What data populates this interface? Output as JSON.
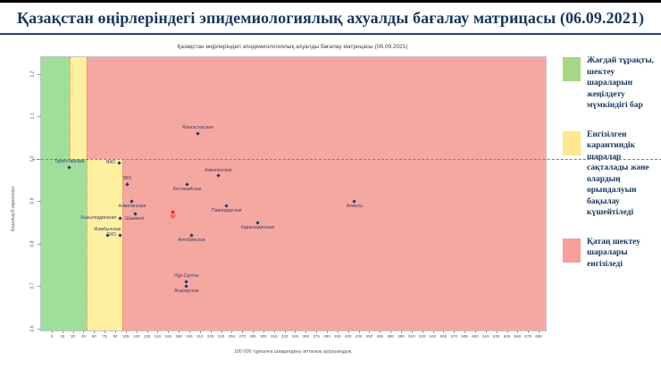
{
  "page": {
    "title": "Қазақстан өңірлеріндегі эпидемиологиялық ахуалды бағалау матрицасы  (06.09.2021)"
  },
  "legend": {
    "items": [
      {
        "color": "#a6d785",
        "label": "Жағдай тұрақты, шектеу шараларын жеңілдету мүмкіндігі бар"
      },
      {
        "color": "#ffe88e",
        "label": "Енгізілген карантиндік шаралар сақталады және олардың орындалуын бақылау күшейтіледі"
      },
      {
        "color": "#f79f98",
        "label": "Қатаң шектеу шаралары енгізіледі"
      }
    ]
  },
  "chart_data": {
    "type": "scatter",
    "title": "Қазақстан өңірлеріндегі эпидемиологиялық ахуалды бағалау матрицасы  (06.09.2021)",
    "xlabel": "100 000 тұрғынға шаққандағы апталық аурушаңдық",
    "ylabel": "Базалық R көрсеткіші",
    "xlim": [
      -15,
      700
    ],
    "ylim": [
      0.595,
      1.24
    ],
    "x_ticks": [
      0,
      15,
      30,
      45,
      60,
      75,
      90,
      105,
      120,
      135,
      150,
      165,
      180,
      195,
      210,
      225,
      240,
      255,
      270,
      285,
      300,
      315,
      330,
      345,
      360,
      375,
      390,
      405,
      420,
      435,
      450,
      465,
      480,
      495,
      510,
      525,
      540,
      555,
      570,
      585,
      600,
      615,
      630,
      645,
      660,
      675,
      690
    ],
    "y_ticks": [
      {
        "v": 1.2,
        "label": "1,2"
      },
      {
        "v": 1.1,
        "label": "1,1"
      },
      {
        "v": 1.0,
        "label": "1,0"
      },
      {
        "v": 0.9,
        "label": "0,9"
      },
      {
        "v": 0.8,
        "label": "0,8"
      },
      {
        "v": 0.7,
        "label": "0,7"
      },
      {
        "v": 0.6,
        "label": "0,6"
      }
    ],
    "zones": [
      {
        "x1": -15,
        "x2": 25,
        "y1": 1.0,
        "y2": 1.24,
        "color": "green"
      },
      {
        "x1": 25,
        "x2": 50,
        "y1": 1.0,
        "y2": 1.24,
        "color": "yellow"
      },
      {
        "x1": 50,
        "x2": 700,
        "y1": 1.0,
        "y2": 1.24,
        "color": "red"
      },
      {
        "x1": -15,
        "x2": 50,
        "y1": 0.595,
        "y2": 1.0,
        "color": "green"
      },
      {
        "x1": 50,
        "x2": 100,
        "y1": 0.595,
        "y2": 1.0,
        "color": "yellow"
      },
      {
        "x1": 100,
        "x2": 700,
        "y1": 0.595,
        "y2": 1.0,
        "color": "red"
      }
    ],
    "guides": {
      "split_y": 1.0,
      "verticals": [
        {
          "x": 25,
          "region": "upper"
        },
        {
          "x": 50,
          "region": "full"
        },
        {
          "x": 100,
          "region": "lower"
        }
      ]
    },
    "points": [
      {
        "name": "Мангистауская",
        "x": 207,
        "y": 1.06,
        "label_pos": "above"
      },
      {
        "name": "Туркестанская",
        "x": 25,
        "y": 0.98,
        "label_pos": "above"
      },
      {
        "name": "ВКО",
        "x": 96,
        "y": 0.99,
        "label_pos": "left"
      },
      {
        "name": "ЗКО",
        "x": 107,
        "y": 0.94,
        "label_pos": "above"
      },
      {
        "name": "Акмолинская",
        "x": 236,
        "y": 0.96,
        "label_pos": "above"
      },
      {
        "name": "Костанайская",
        "x": 192,
        "y": 0.94,
        "label_pos": "below"
      },
      {
        "name": "Алматинская",
        "x": 114,
        "y": 0.9,
        "label_pos": "below"
      },
      {
        "name": "Павлодарская",
        "x": 248,
        "y": 0.89,
        "label_pos": "below"
      },
      {
        "name": "Шымкент",
        "x": 118,
        "y": 0.87,
        "label_pos": "below"
      },
      {
        "name": "Кызылординская",
        "x": 97,
        "y": 0.86,
        "label_pos": "left"
      },
      {
        "name": "ҚР",
        "x": 172,
        "y": 0.875,
        "label_pos": "below",
        "highlight": true
      },
      {
        "name": "Жамбылская",
        "x": 79,
        "y": 0.82,
        "label_pos": "above"
      },
      {
        "name": "СКО",
        "x": 97,
        "y": 0.82,
        "label_pos": "left"
      },
      {
        "name": "Актюбинская",
        "x": 198,
        "y": 0.82,
        "label_pos": "below"
      },
      {
        "name": "Карагандинская",
        "x": 292,
        "y": 0.85,
        "label_pos": "below"
      },
      {
        "name": "Алматы",
        "x": 429,
        "y": 0.9,
        "label_pos": "below"
      },
      {
        "name": "Нұр-Сұлтан",
        "x": 191,
        "y": 0.71,
        "label_pos": "above"
      },
      {
        "name": "Атырауская",
        "x": 191,
        "y": 0.7,
        "label_pos": "below"
      }
    ],
    "colors": {
      "green": "#9fdf9b",
      "yellow": "#fff0a0",
      "red": "#f5a8a2",
      "marker": "#1f3864",
      "label": "#3b3b63",
      "highlight": "#ff0000",
      "dash_h": "#df5a52",
      "dash_v": "#ed7d31"
    },
    "legend_position": "right",
    "grid": false
  }
}
